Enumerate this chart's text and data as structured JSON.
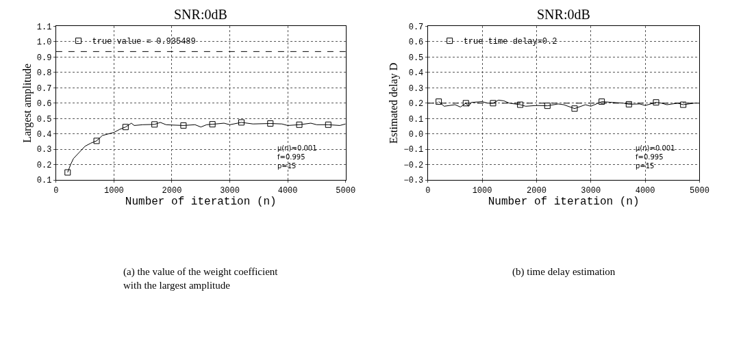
{
  "chart_data": [
    {
      "type": "line",
      "title": "SNR:0dB",
      "xlabel": "Number of iteration (n)",
      "ylabel": "Largest amplitude",
      "xlim": [
        0,
        5000
      ],
      "xticks": [
        0,
        1000,
        2000,
        3000,
        4000,
        5000
      ],
      "ylim": [
        0.1,
        1.1
      ],
      "yticks": [
        {
          "value": 0.1,
          "label": "0.1"
        },
        {
          "value": 0.2,
          "label": "0.2"
        },
        {
          "value": 0.3,
          "label": "0.3"
        },
        {
          "value": 0.4,
          "label": "0.4"
        },
        {
          "value": 0.5,
          "label": "0.5"
        },
        {
          "value": 0.6,
          "label": "0.6"
        },
        {
          "value": 0.7,
          "label": "0.7"
        },
        {
          "value": 0.8,
          "label": "0.8"
        },
        {
          "value": 0.9,
          "label": "0.9"
        },
        {
          "value": 1.0,
          "label": "1.0"
        },
        {
          "value": 1.1,
          "label": "1.1"
        }
      ],
      "grid": true,
      "legend": "top left",
      "series": [
        {
          "color": "#000000",
          "x": [
            200,
            250,
            300,
            400,
            500,
            600,
            700,
            800,
            900,
            1000,
            1100,
            1200,
            1300,
            1350,
            1500,
            1700,
            1800,
            1900,
            2000,
            2200,
            2400,
            2500,
            2600,
            2700,
            2900,
            3000,
            3200,
            3400,
            3700,
            3900,
            4000,
            4200,
            4400,
            4500,
            4700,
            4900,
            5000
          ],
          "values": [
            0.15,
            0.2,
            0.24,
            0.28,
            0.32,
            0.34,
            0.355,
            0.39,
            0.4,
            0.41,
            0.43,
            0.445,
            0.47,
            0.455,
            0.46,
            0.462,
            0.475,
            0.46,
            0.458,
            0.455,
            0.46,
            0.445,
            0.46,
            0.463,
            0.47,
            0.46,
            0.475,
            0.465,
            0.468,
            0.465,
            0.455,
            0.46,
            0.47,
            0.46,
            0.46,
            0.455,
            0.465
          ]
        },
        {
          "type": "scatter",
          "name": "true value = 0.935489",
          "color": "#000000",
          "marker": "square",
          "x": [
            200,
            700,
            1200,
            1700,
            2200,
            2700,
            3200,
            3700,
            4200,
            4700
          ],
          "values": [
            0.15,
            0.355,
            0.445,
            0.462,
            0.455,
            0.463,
            0.475,
            0.468,
            0.46,
            0.46
          ]
        }
      ],
      "ref_lines": [
        {
          "axis": "y",
          "value": 0.935489,
          "color": "#000000",
          "line_style": "dashed"
        }
      ],
      "annotations": [
        "μ(n)=0.001\nf=0.995\np=15",
        "(a) the value of the weight coefficient\nwith the largest amplitude"
      ]
    },
    {
      "type": "line",
      "title": "SNR:0dB",
      "xlabel": "Number of iteration (n)",
      "ylabel": "Estimated delay D",
      "xlim": [
        0,
        5000
      ],
      "xticks": [
        0,
        1000,
        2000,
        3000,
        4000,
        5000
      ],
      "ylim": [
        -0.3,
        0.7
      ],
      "yticks": [
        {
          "value": -0.3,
          "label": "−0.3"
        },
        {
          "value": -0.2,
          "label": "−0.2"
        },
        {
          "value": -0.1,
          "label": "−0.1"
        },
        {
          "value": 0.0,
          "label": "0.0"
        },
        {
          "value": 0.1,
          "label": "0.1"
        },
        {
          "value": 0.2,
          "label": "0.2"
        },
        {
          "value": 0.3,
          "label": "0.3"
        },
        {
          "value": 0.4,
          "label": "0.4"
        },
        {
          "value": 0.5,
          "label": "0.5"
        },
        {
          "value": 0.6,
          "label": "0.6"
        },
        {
          "value": 0.7,
          "label": "0.7"
        }
      ],
      "grid": true,
      "legend": "top left",
      "series": [
        {
          "color": "#000000",
          "x": [
            200,
            300,
            500,
            600,
            700,
            750,
            800,
            1000,
            1100,
            1200,
            1300,
            1400,
            1500,
            1700,
            1800,
            2000,
            2200,
            2400,
            2500,
            2700,
            2900,
            3000,
            3200,
            3400,
            3600,
            3700,
            3900,
            4000,
            4200,
            4300,
            4400,
            4600,
            4700,
            4900,
            5000
          ],
          "values": [
            0.21,
            0.18,
            0.19,
            0.175,
            0.2,
            0.18,
            0.205,
            0.21,
            0.2,
            0.2,
            0.22,
            0.215,
            0.2,
            0.19,
            0.18,
            0.185,
            0.183,
            0.195,
            0.19,
            0.165,
            0.19,
            0.18,
            0.21,
            0.205,
            0.2,
            0.193,
            0.195,
            0.185,
            0.205,
            0.2,
            0.19,
            0.2,
            0.19,
            0.2,
            0.2
          ]
        },
        {
          "type": "scatter",
          "name": "true time delay=0.2",
          "color": "#000000",
          "marker": "square",
          "x": [
            200,
            700,
            1200,
            1700,
            2200,
            2700,
            3200,
            3700,
            4200,
            4700
          ],
          "values": [
            0.21,
            0.2,
            0.2,
            0.19,
            0.183,
            0.165,
            0.21,
            0.193,
            0.205,
            0.19
          ]
        }
      ],
      "ref_lines": [
        {
          "axis": "y",
          "value": 0.2,
          "color": "#000000",
          "line_style": "dashed"
        }
      ],
      "annotations": [
        "μ(n)=0.001\nf=0.995\np=15",
        "(b) time delay estimation"
      ]
    }
  ]
}
